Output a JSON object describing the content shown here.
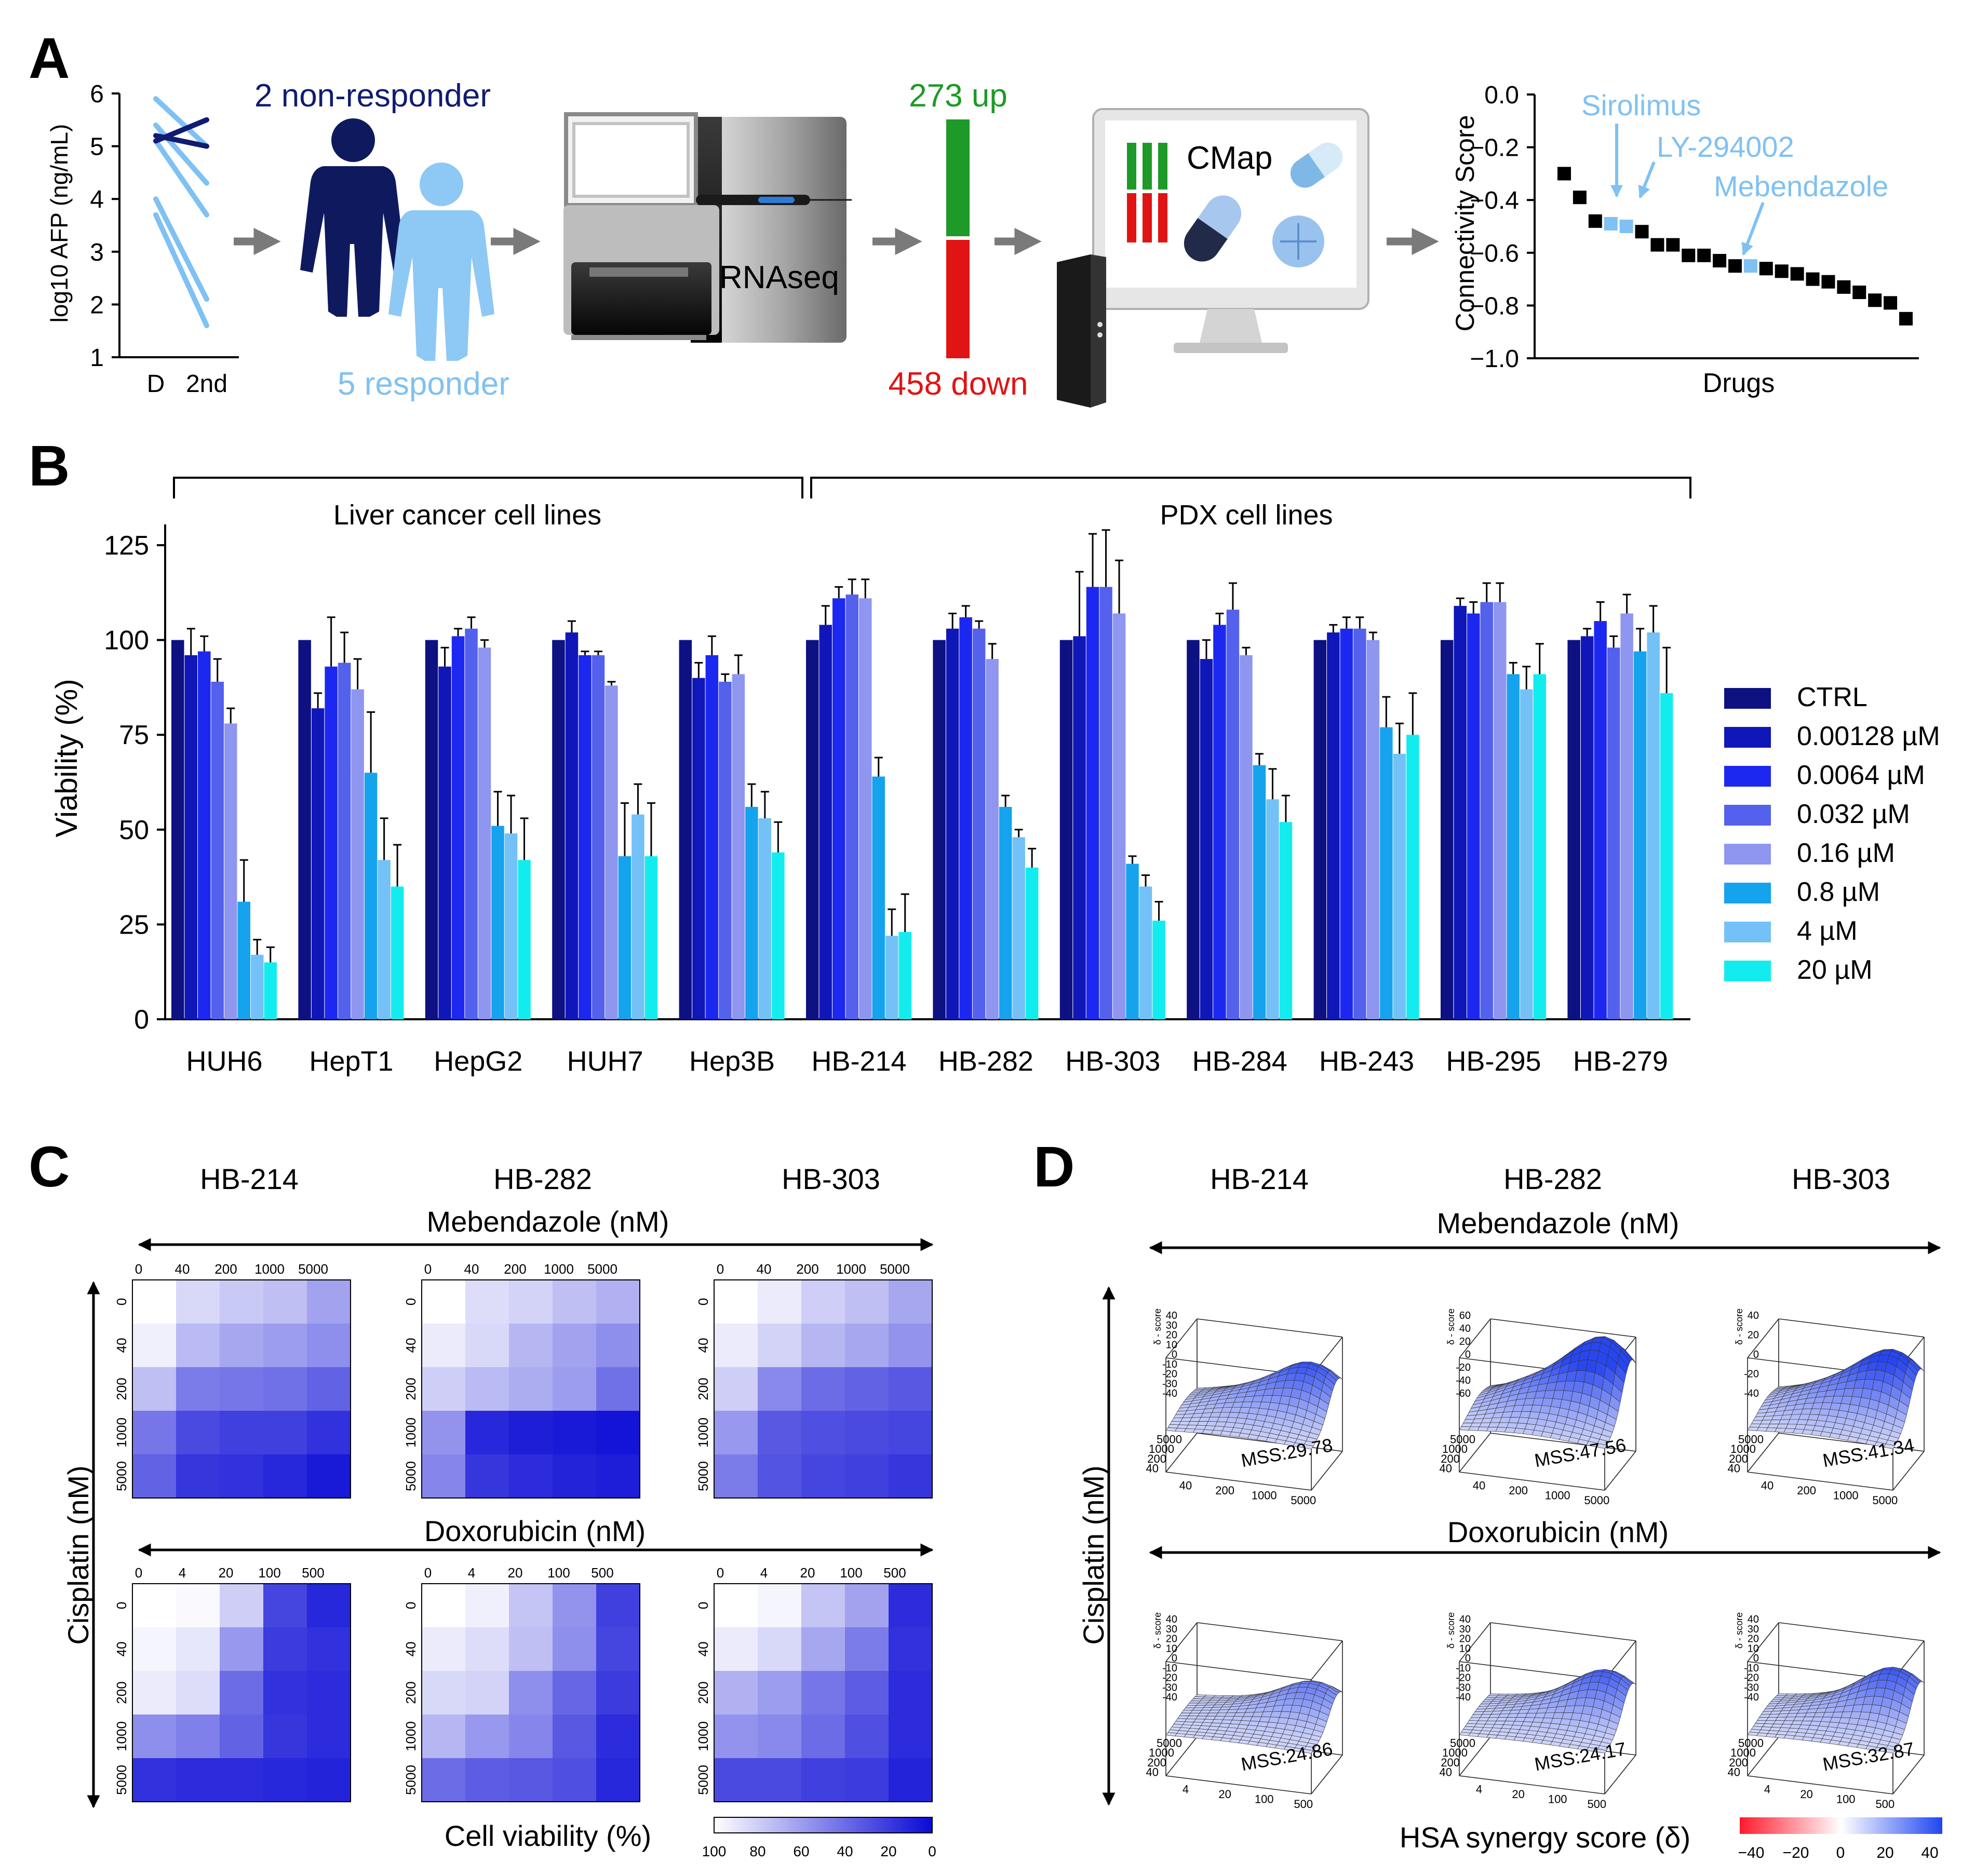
{
  "panel_labels": {
    "a": "A",
    "b": "B",
    "c": "C",
    "d": "D"
  },
  "colors": {
    "nonresponder": "#101b73",
    "responder": "#7fc1f2",
    "up": "#1d9a28",
    "down": "#e01414",
    "heat_low": "#ffffff",
    "heat_high": "#0a0ad6",
    "synergy_neg": "#ff1a2e",
    "synergy_pos": "#1f46f2",
    "series": [
      "#0d1182",
      "#1017b8",
      "#1c28f0",
      "#5461ec",
      "#8e96f0",
      "#15a3ee",
      "#73c1f6",
      "#13ecef"
    ]
  },
  "panel_a": {
    "afp_chart": {
      "type": "line",
      "ylabel": "log10 AFP (ng/mL)",
      "yticks": [
        "1",
        "2",
        "3",
        "4",
        "5",
        "6"
      ],
      "xticks": [
        "D",
        "2nd"
      ],
      "ylim": [
        1,
        6
      ],
      "nonresponder_lines": [
        [
          5.1,
          5.5
        ],
        [
          5.2,
          5.0
        ]
      ],
      "responder_lines": [
        [
          5.9,
          5.0
        ],
        [
          5.4,
          4.3
        ],
        [
          5.1,
          3.7
        ],
        [
          4.0,
          2.1
        ],
        [
          3.7,
          1.6
        ]
      ]
    },
    "nonresponder_label": "2 non-responder",
    "responder_label": "5 responder",
    "rnaseq_label": "RNAseq",
    "up_label": "273 up",
    "down_label": "458 down",
    "cmap_label": "CMap",
    "connectivity_chart": {
      "type": "scatter",
      "ylabel": "Connectivity Score",
      "xlabel": "Drugs",
      "yticks": [
        "0.0",
        "−0.2",
        "−0.4",
        "−0.6",
        "−0.8",
        "−1.0"
      ],
      "ylim": [
        -1.0,
        0.0
      ],
      "scores": [
        -0.3,
        -0.39,
        -0.48,
        -0.49,
        -0.5,
        -0.52,
        -0.57,
        -0.57,
        -0.61,
        -0.61,
        -0.63,
        -0.65,
        -0.65,
        -0.66,
        -0.67,
        -0.68,
        -0.7,
        -0.71,
        -0.73,
        -0.75,
        -0.78,
        -0.79,
        -0.85
      ],
      "highlight_index": [
        3,
        4,
        12
      ],
      "annotations": [
        "Sirolimus",
        "LY-294002",
        "Mebendazole"
      ]
    }
  },
  "panel_b": {
    "chart_data": {
      "type": "bar",
      "ylabel": "Viability (%)",
      "yticks": [
        "0",
        "25",
        "50",
        "75",
        "100",
        "125"
      ],
      "ylim": [
        0,
        130
      ],
      "group_labels": [
        "Liver cancer cell lines",
        "PDX cell lines"
      ],
      "categories": [
        "HUH6",
        "HepT1",
        "HepG2",
        "HUH7",
        "Hep3B",
        "HB-214",
        "HB-282",
        "HB-303",
        "HB-284",
        "HB-243",
        "HB-295",
        "HB-279"
      ],
      "legend": [
        "CTRL",
        "0.00128 µM",
        "0.0064 µM",
        "0.032 µM",
        "0.16 µM",
        "0.8 µM",
        "4 µM",
        "20 µM"
      ],
      "values": [
        [
          100,
          96,
          97,
          89,
          78,
          31,
          17,
          15
        ],
        [
          100,
          82,
          93,
          94,
          87,
          65,
          42,
          35
        ],
        [
          100,
          93,
          101,
          103,
          98,
          51,
          49,
          42
        ],
        [
          100,
          102,
          96,
          96,
          88,
          43,
          54,
          43
        ],
        [
          100,
          90,
          96,
          89,
          91,
          56,
          53,
          44
        ],
        [
          100,
          104,
          111,
          112,
          111,
          64,
          22,
          23
        ],
        [
          100,
          103,
          106,
          103,
          95,
          56,
          48,
          40
        ],
        [
          100,
          101,
          114,
          114,
          107,
          41,
          35,
          26
        ],
        [
          100,
          95,
          104,
          108,
          96,
          67,
          58,
          52
        ],
        [
          100,
          102,
          103,
          103,
          100,
          77,
          70,
          75
        ],
        [
          100,
          109,
          107,
          110,
          110,
          91,
          87,
          91
        ],
        [
          100,
          101,
          105,
          98,
          107,
          97,
          102,
          86
        ]
      ],
      "errors": [
        [
          0,
          7,
          4,
          6,
          4,
          11,
          4,
          4
        ],
        [
          0,
          4,
          13,
          8,
          8,
          16,
          11,
          11
        ],
        [
          0,
          5,
          2,
          3,
          2,
          9,
          10,
          11
        ],
        [
          0,
          3,
          1,
          1,
          1,
          14,
          8,
          14
        ],
        [
          0,
          4,
          5,
          2,
          5,
          6,
          7,
          8
        ],
        [
          0,
          5,
          3,
          4,
          5,
          5,
          7,
          10
        ],
        [
          0,
          4,
          3,
          2,
          4,
          3,
          2,
          5
        ],
        [
          0,
          17,
          14,
          15,
          14,
          2,
          3,
          5
        ],
        [
          0,
          5,
          3,
          7,
          2,
          3,
          8,
          7
        ],
        [
          0,
          2,
          3,
          3,
          2,
          8,
          8,
          11
        ],
        [
          0,
          2,
          3,
          5,
          5,
          3,
          6,
          8
        ],
        [
          0,
          2,
          5,
          3,
          5,
          6,
          7,
          12
        ]
      ]
    }
  },
  "panel_c": {
    "columns": [
      "HB-214",
      "HB-282",
      "HB-303"
    ],
    "row_drug_1": "Mebendazole (nM)",
    "row_drug_2": "Doxorubicin (nM)",
    "y_axis": "Cisplatin (nM)",
    "x_ticks_1": [
      "0",
      "40",
      "200",
      "1000",
      "5000"
    ],
    "x_ticks_2": [
      "0",
      "4",
      "20",
      "100",
      "500"
    ],
    "y_ticks": [
      "0",
      "40",
      "200",
      "1000",
      "5000"
    ],
    "heatmaps_1": [
      [
        [
          100,
          84,
          78,
          74,
          62
        ],
        [
          94,
          72,
          64,
          60,
          54
        ],
        [
          74,
          46,
          44,
          42,
          36
        ],
        [
          44,
          26,
          22,
          22,
          16
        ],
        [
          36,
          18,
          16,
          12,
          6
        ]
      ],
      [
        [
          100,
          86,
          82,
          74,
          68
        ],
        [
          92,
          84,
          70,
          62,
          54
        ],
        [
          80,
          72,
          66,
          60,
          42
        ],
        [
          56,
          12,
          8,
          6,
          4
        ],
        [
          50,
          18,
          14,
          10,
          8
        ]
      ],
      [
        [
          100,
          92,
          80,
          74,
          64
        ],
        [
          92,
          82,
          70,
          64,
          56
        ],
        [
          80,
          52,
          40,
          36,
          32
        ],
        [
          58,
          32,
          28,
          26,
          24
        ],
        [
          46,
          30,
          24,
          22,
          18
        ]
      ]
    ],
    "heatmaps_2": [
      [
        [
          100,
          98,
          80,
          24,
          12
        ],
        [
          96,
          90,
          58,
          20,
          16
        ],
        [
          92,
          86,
          40,
          16,
          14
        ],
        [
          54,
          48,
          36,
          18,
          14
        ],
        [
          16,
          14,
          14,
          12,
          10
        ]
      ],
      [
        [
          100,
          94,
          76,
          56,
          22
        ],
        [
          92,
          86,
          74,
          54,
          24
        ],
        [
          84,
          82,
          54,
          38,
          20
        ],
        [
          70,
          58,
          50,
          32,
          14
        ],
        [
          40,
          34,
          32,
          28,
          12
        ]
      ],
      [
        [
          100,
          96,
          76,
          62,
          14
        ],
        [
          92,
          84,
          64,
          46,
          16
        ],
        [
          68,
          60,
          44,
          34,
          14
        ],
        [
          56,
          52,
          40,
          28,
          14
        ],
        [
          26,
          26,
          22,
          20,
          10
        ]
      ]
    ],
    "legend_title": "Cell viability (%)",
    "legend_ticks": [
      "100",
      "80",
      "60",
      "40",
      "20",
      "0"
    ]
  },
  "panel_d": {
    "columns": [
      "HB-214",
      "HB-282",
      "HB-303"
    ],
    "row_drug_1": "Mebendazole (nM)",
    "row_drug_2": "Doxorubicin (nM)",
    "y_axis": "Cisplatin (nM)",
    "mss_1": [
      "MSS:29.78",
      "MSS:47.56",
      "MSS:41.34"
    ],
    "mss_2": [
      "MSS:24.86",
      "MSS:24.17",
      "MSS:32.87"
    ],
    "peaks_1": [
      40,
      60,
      50
    ],
    "peaks_2": [
      30,
      40,
      42
    ],
    "z_ticks_1": [
      [
        "40",
        "30",
        "20",
        "10",
        "0",
        "-10",
        "-20",
        "-30",
        "-40"
      ],
      [
        "60",
        "40",
        "20",
        "0",
        "-20",
        "-40",
        "-60"
      ],
      [
        "40",
        "20",
        "0",
        "-20",
        "-40"
      ]
    ],
    "z_ticks_2": [
      [
        "40",
        "30",
        "20",
        "10",
        "0",
        "-10",
        "-20",
        "-30",
        "-40"
      ],
      [
        "40",
        "30",
        "20",
        "10",
        "0",
        "-10",
        "-20",
        "-30",
        "-40"
      ],
      [
        "40",
        "30",
        "20",
        "10",
        "0",
        "-10",
        "-20",
        "-30",
        "-40"
      ]
    ],
    "z_label": "δ - score",
    "x_ticks_1": [
      "40",
      "200",
      "1000",
      "5000"
    ],
    "x_ticks_2": [
      "4",
      "20",
      "100",
      "500"
    ],
    "y_ticks": [
      "5000",
      "1000",
      "200",
      "40"
    ],
    "legend_title": "HSA synergy score (δ)",
    "legend_ticks": [
      "−40",
      "−20",
      "0",
      "20",
      "40"
    ]
  }
}
